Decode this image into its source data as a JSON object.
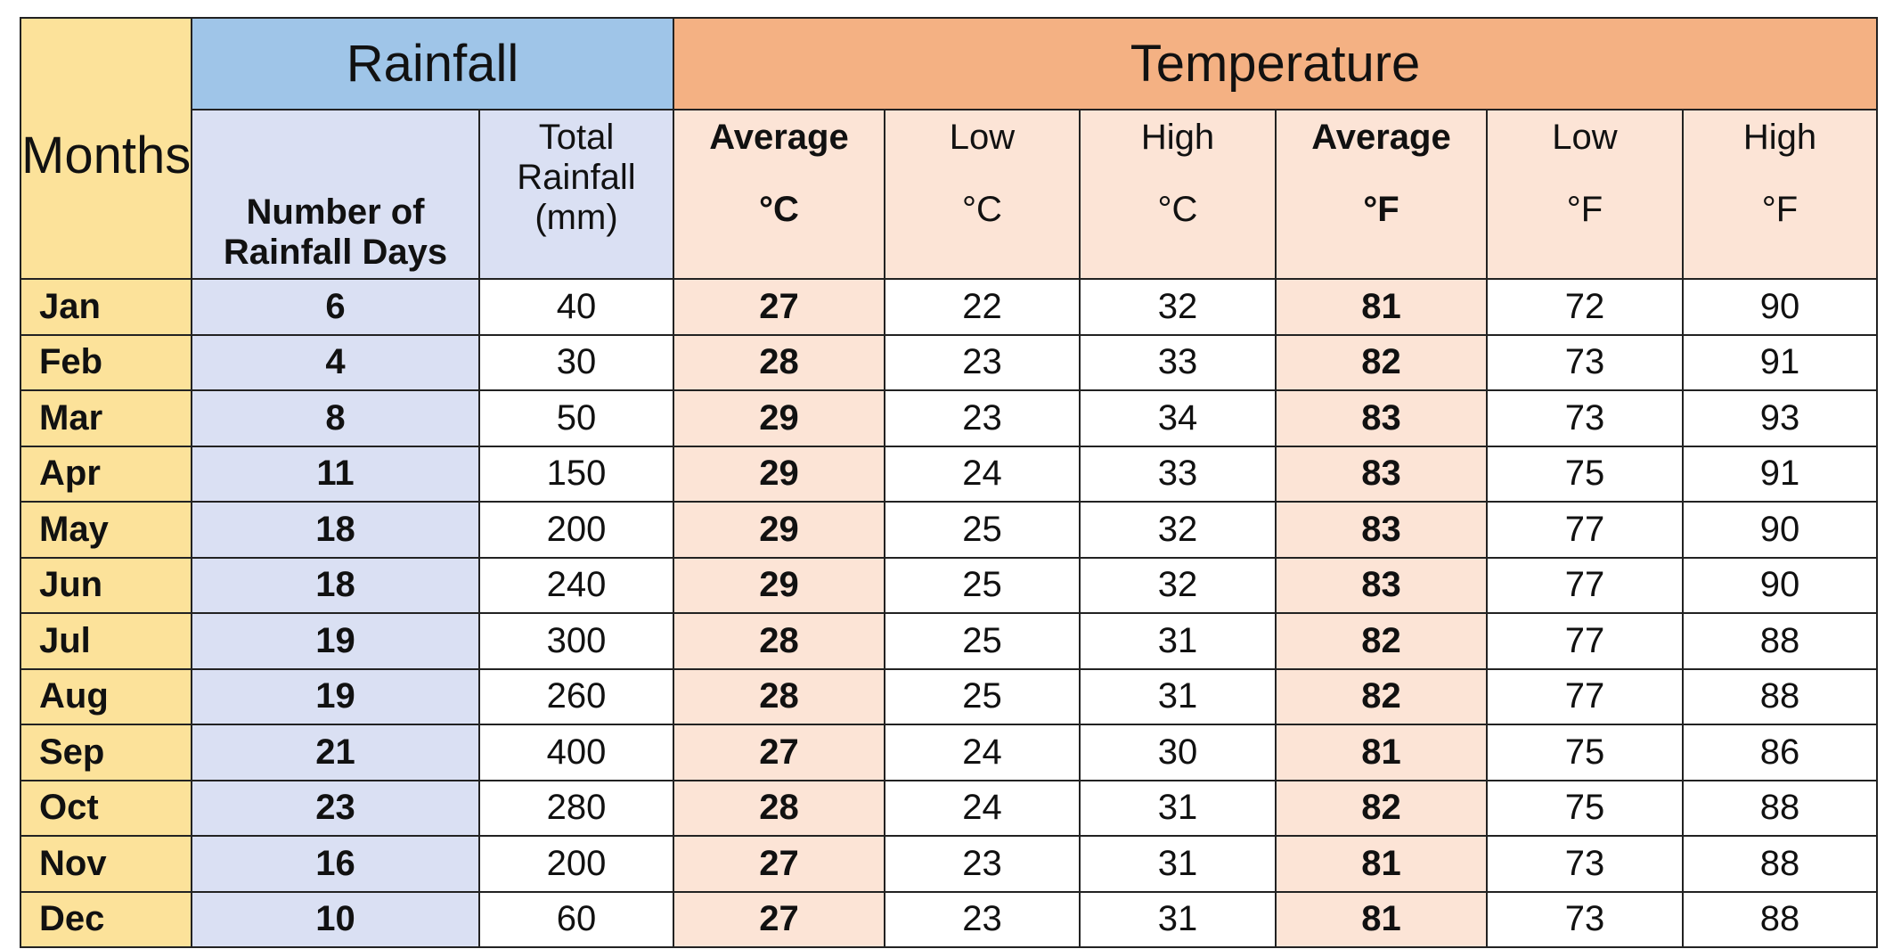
{
  "table": {
    "months_header": "Months",
    "groups": [
      {
        "label": "Rainfall",
        "span": 2
      },
      {
        "label": "Temperature",
        "span": 6
      }
    ],
    "columns": [
      {
        "label": "Number of Rainfall Days"
      },
      {
        "label": "Total Rainfall (mm)"
      },
      {
        "label": "Average",
        "unit": "°C"
      },
      {
        "label": "Low",
        "unit": "°C"
      },
      {
        "label": "High",
        "unit": "°C"
      },
      {
        "label": "Average",
        "unit": "°F"
      },
      {
        "label": "Low",
        "unit": "°F"
      },
      {
        "label": "High",
        "unit": "°F"
      }
    ],
    "rows": [
      [
        "Jan",
        6,
        40,
        27,
        22,
        32,
        81,
        72,
        90
      ],
      [
        "Feb",
        4,
        30,
        28,
        23,
        33,
        82,
        73,
        91
      ],
      [
        "Mar",
        8,
        50,
        29,
        23,
        34,
        83,
        73,
        93
      ],
      [
        "Apr",
        11,
        150,
        29,
        24,
        33,
        83,
        75,
        91
      ],
      [
        "May",
        18,
        200,
        29,
        25,
        32,
        83,
        77,
        90
      ],
      [
        "Jun",
        18,
        240,
        29,
        25,
        32,
        83,
        77,
        90
      ],
      [
        "Jul",
        19,
        300,
        28,
        25,
        31,
        82,
        77,
        88
      ],
      [
        "Aug",
        19,
        260,
        28,
        25,
        31,
        82,
        77,
        88
      ],
      [
        "Sep",
        21,
        400,
        27,
        24,
        30,
        81,
        75,
        86
      ],
      [
        "Oct",
        23,
        280,
        28,
        24,
        31,
        82,
        75,
        88
      ],
      [
        "Nov",
        16,
        200,
        27,
        23,
        31,
        81,
        73,
        88
      ],
      [
        "Dec",
        10,
        60,
        27,
        23,
        31,
        81,
        73,
        88
      ]
    ]
  }
}
